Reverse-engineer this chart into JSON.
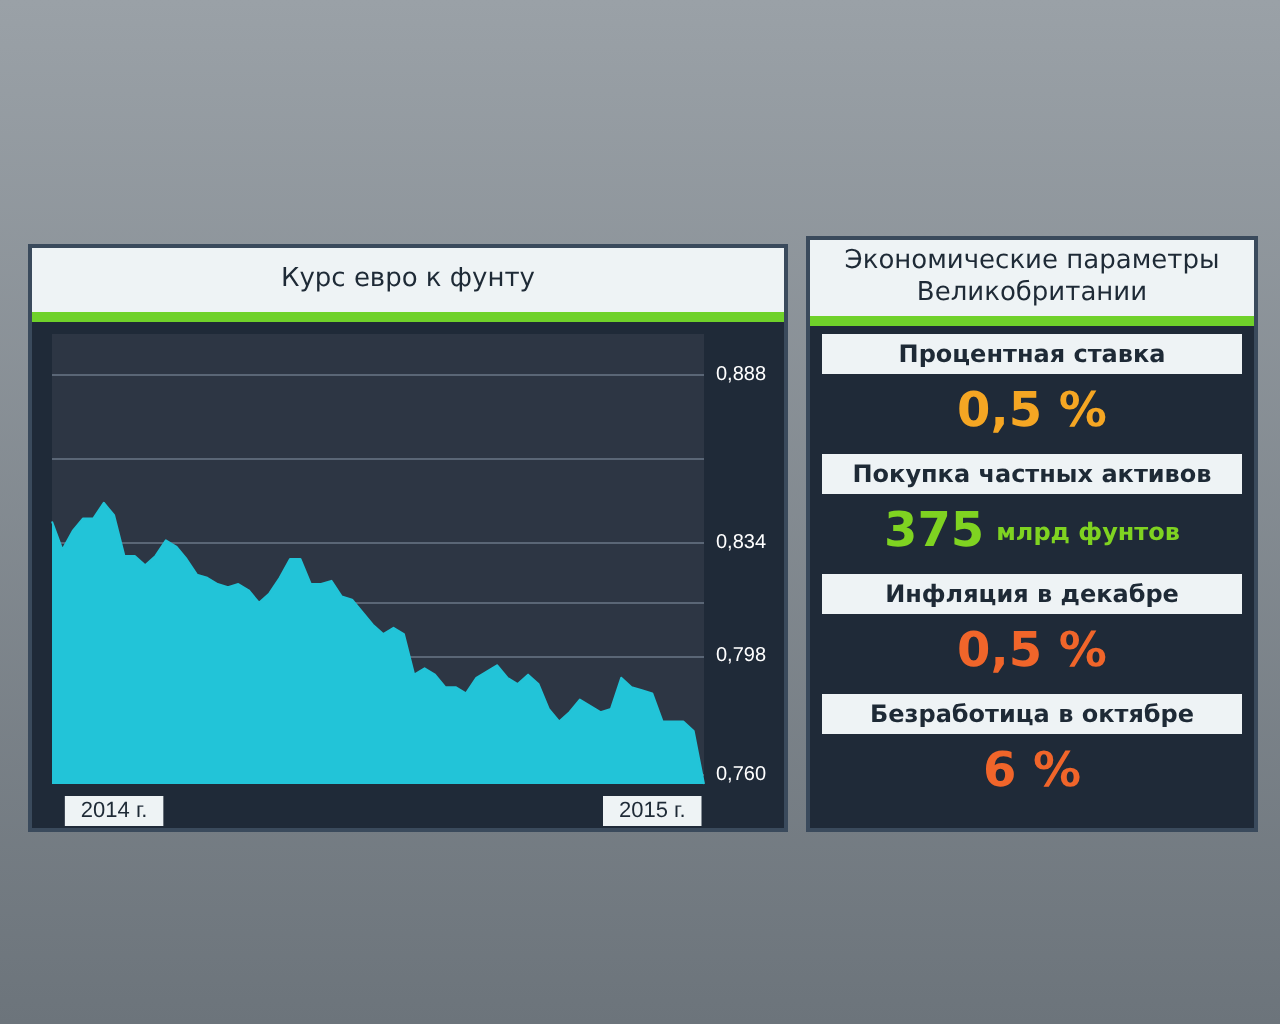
{
  "chart_data": [
    {
      "type": "area",
      "title": "Курс евро к фунту",
      "categories": [
        null,
        null,
        null,
        null,
        null,
        null,
        "2014 г.",
        null,
        null,
        null,
        null,
        null,
        null,
        null,
        null,
        null,
        null,
        null,
        null,
        null,
        null,
        null,
        null,
        null,
        null,
        null,
        null,
        null,
        null,
        null,
        null,
        null,
        null,
        null,
        null,
        null,
        null,
        null,
        null,
        null,
        null,
        null,
        null,
        null,
        null,
        null,
        null,
        null,
        null,
        null,
        null,
        null,
        null,
        null,
        null,
        null,
        null,
        null,
        "2015 г.",
        null,
        null,
        null,
        null,
        null
      ],
      "values": [
        0.841,
        0.832,
        0.838,
        0.842,
        0.842,
        0.847,
        0.843,
        0.83,
        0.83,
        0.827,
        0.83,
        0.835,
        0.833,
        0.829,
        0.824,
        0.823,
        0.821,
        0.82,
        0.821,
        0.819,
        0.815,
        0.818,
        0.823,
        0.829,
        0.829,
        0.821,
        0.821,
        0.822,
        0.817,
        0.816,
        0.812,
        0.808,
        0.805,
        0.807,
        0.805,
        0.792,
        0.794,
        0.792,
        0.788,
        0.788,
        0.786,
        0.791,
        0.793,
        0.795,
        0.791,
        0.789,
        0.792,
        0.789,
        0.781,
        0.777,
        0.78,
        0.784,
        0.782,
        0.78,
        0.781,
        0.791,
        0.788,
        0.787,
        0.786,
        0.777,
        0.777,
        0.777,
        0.774,
        0.757
      ],
      "color": "#22c4d8",
      "ylim": [
        0.757,
        0.901
      ],
      "yticks": [
        {
          "value": 0.76,
          "label": "0,760"
        },
        {
          "value": 0.798,
          "label": "0,798"
        },
        {
          "value": 0.815,
          "label": null
        },
        {
          "value": 0.834,
          "label": "0,834"
        },
        {
          "value": 0.861,
          "label": null
        },
        {
          "value": 0.888,
          "label": "0,888"
        }
      ],
      "grid": "y"
    },
    {
      "type": "other",
      "title": "Экономические параметры Великобритании",
      "annotations": [
        "Процентная ставка",
        "0,5 %",
        "Покупка частных активов",
        "375",
        "млрд фунтов",
        "Инфляция в декабре",
        "0,5 %",
        "Безработица в октябре",
        "6 %"
      ]
    }
  ]
}
